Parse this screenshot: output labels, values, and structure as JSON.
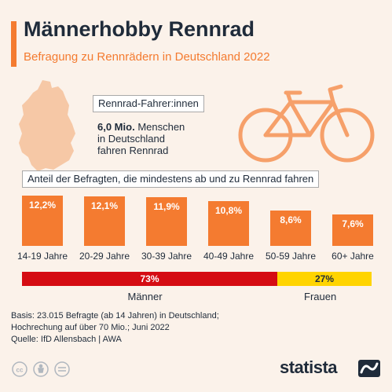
{
  "header": {
    "title": "Männerhobby Rennrad",
    "subtitle": "Befragung zu Rennrädern in Deutschland 2022"
  },
  "info": {
    "riders_label": "Rennrad-Fahrer:innen",
    "riders_value": "6,0 Mio.",
    "riders_line1_rest": "Menschen",
    "riders_line2": "in Deutschland",
    "riders_line3": "fahren Rennrad",
    "share_label": "Anteil der Befragten, die mindestens ab und zu Rennrad fahren"
  },
  "icons": [
    "germany-map-icon",
    "bicycle-icon",
    "cc-icon",
    "by-icon",
    "nd-icon",
    "statista-logo-icon"
  ],
  "colors": {
    "accent": "#f47b30",
    "men": "#d50c13",
    "women": "#ffd400",
    "background": "#fbf2ea"
  },
  "chart_data": [
    {
      "type": "bar",
      "title": "Anteil der Befragten, die mindestens ab und zu Rennrad fahren",
      "categories": [
        "14-19 Jahre",
        "20-29 Jahre",
        "30-39 Jahre",
        "40-49 Jahre",
        "50-59 Jahre",
        "60+ Jahre"
      ],
      "values": [
        12.2,
        12.1,
        11.9,
        10.8,
        8.6,
        7.6
      ],
      "value_labels": [
        "12,2%",
        "12,1%",
        "11,9%",
        "10,8%",
        "8,6%",
        "7,6%"
      ],
      "xlabel": "",
      "ylabel": "",
      "ylim": [
        0,
        12.2
      ]
    },
    {
      "type": "bar",
      "stacked": true,
      "categories": [
        "Männer",
        "Frauen"
      ],
      "values": [
        73,
        27
      ],
      "value_labels": [
        "73%",
        "27%"
      ]
    }
  ],
  "footer": {
    "line1": "Basis: 23.015 Befragte (ab 14 Jahren) in Deutschland;",
    "line2": "Hochrechung auf über 70 Mio.; Juni 2022",
    "line3": "Quelle: IfD Allensbach | AWA",
    "brand": "statista"
  }
}
